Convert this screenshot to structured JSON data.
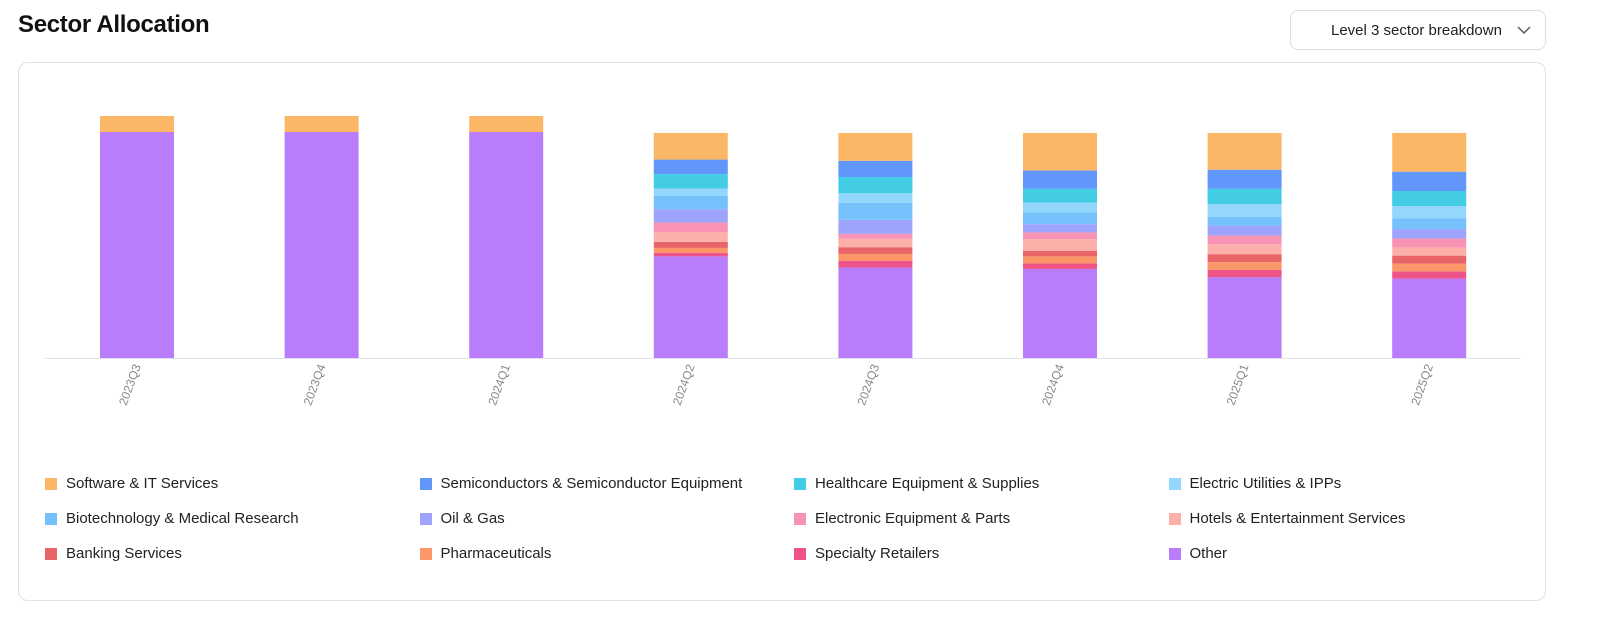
{
  "header": {
    "title": "Sector Allocation",
    "dropdown_value": "Level 3 sector breakdown",
    "dropdown_icon": "chevron-down-icon"
  },
  "chart_data": {
    "type": "bar",
    "stacked": true,
    "title": "",
    "xlabel": "",
    "ylabel": "",
    "ylim": [
      0,
      100
    ],
    "grid": false,
    "legend_position": "bottom",
    "categories": [
      "2023Q3",
      "2023Q4",
      "2024Q1",
      "2024Q2",
      "2024Q3",
      "2024Q4",
      "2025Q1",
      "2025Q2"
    ],
    "series": [
      {
        "name": "Other",
        "color": "#b97cfb",
        "values": [
          93.4,
          93.4,
          93.4,
          42,
          37.4,
          36.8,
          33.4,
          32.8
        ]
      },
      {
        "name": "Specialty Retailers",
        "color": "#ef5488",
        "values": [
          0,
          0,
          0,
          1.5,
          2.8,
          2.3,
          3,
          3
        ]
      },
      {
        "name": "Pharmaceuticals",
        "color": "#fb9668",
        "values": [
          0,
          0,
          0,
          2,
          2.8,
          2.9,
          3.2,
          3.2
        ]
      },
      {
        "name": "Banking Services",
        "color": "#e96466",
        "values": [
          0,
          0,
          0,
          2.5,
          2.8,
          2.3,
          3.3,
          3.3
        ]
      },
      {
        "name": "Hotels & Entertainment Services",
        "color": "#fdb0a9",
        "values": [
          0,
          0,
          0,
          4,
          3.5,
          4.8,
          4.1,
          3.4
        ]
      },
      {
        "name": "Electronic Equipment & Parts",
        "color": "#f893b5",
        "values": [
          0,
          0,
          0,
          4,
          2,
          2.8,
          3.6,
          3.7
        ]
      },
      {
        "name": "Oil & Gas",
        "color": "#9ea4fc",
        "values": [
          0,
          0,
          0,
          5.5,
          5.8,
          3.4,
          4.1,
          3.9
        ]
      },
      {
        "name": "Biotechnology & Medical Research",
        "color": "#74c1fc",
        "values": [
          0,
          0,
          0,
          5.5,
          7,
          4.8,
          3.7,
          4.5
        ]
      },
      {
        "name": "Electric Utilities & IPPs",
        "color": "#93d8fc",
        "values": [
          0,
          0,
          0,
          3,
          4,
          4.1,
          5.2,
          5
        ]
      },
      {
        "name": "Healthcare Equipment & Supplies",
        "color": "#42cde4",
        "values": [
          0,
          0,
          0,
          6,
          6.7,
          5.7,
          6.3,
          6.2
        ]
      },
      {
        "name": "Semiconductors & Semiconductor Equipment",
        "color": "#6196fb",
        "values": [
          0,
          0,
          0,
          6,
          6.7,
          7.6,
          7.9,
          8
        ]
      },
      {
        "name": "Software & IT Services",
        "color": "#fbb766",
        "values": [
          6.6,
          6.6,
          6.6,
          11,
          11.5,
          15.5,
          15.2,
          16
        ]
      }
    ],
    "legend_order": [
      "Software & IT Services",
      "Semiconductors & Semiconductor Equipment",
      "Healthcare Equipment & Supplies",
      "Electric Utilities & IPPs",
      "Biotechnology & Medical Research",
      "Oil & Gas",
      "Electronic Equipment & Parts",
      "Hotels & Entertainment Services",
      "Banking Services",
      "Pharmaceuticals",
      "Specialty Retailers",
      "Other"
    ]
  }
}
